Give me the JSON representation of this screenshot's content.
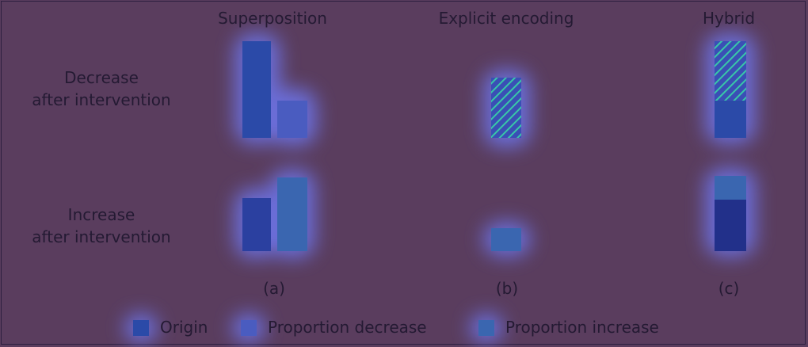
{
  "columns": [
    {
      "title": "Superposition",
      "caption": "(a)"
    },
    {
      "title": "Explicit encoding",
      "caption": "(b)"
    },
    {
      "title": "Hybrid",
      "caption": "(c)"
    }
  ],
  "rows": [
    {
      "line1": "Decrease",
      "line2": "after intervention"
    },
    {
      "line1": "Increase",
      "line2": "after intervention"
    }
  ],
  "legend": [
    {
      "label": "Origin",
      "color": "#2b4aa8"
    },
    {
      "label": "Proportion decrease",
      "color": "#4a5cc0"
    },
    {
      "label": "Proportion increase",
      "color": "#3a66b0"
    }
  ],
  "colors": {
    "background": "#5a3d5e",
    "origin": "#2b4aa8",
    "decrease": "#4a5cc0",
    "increase": "#3a66b0",
    "hatch": "#39c7a8",
    "glow": "#6f7dff"
  }
}
